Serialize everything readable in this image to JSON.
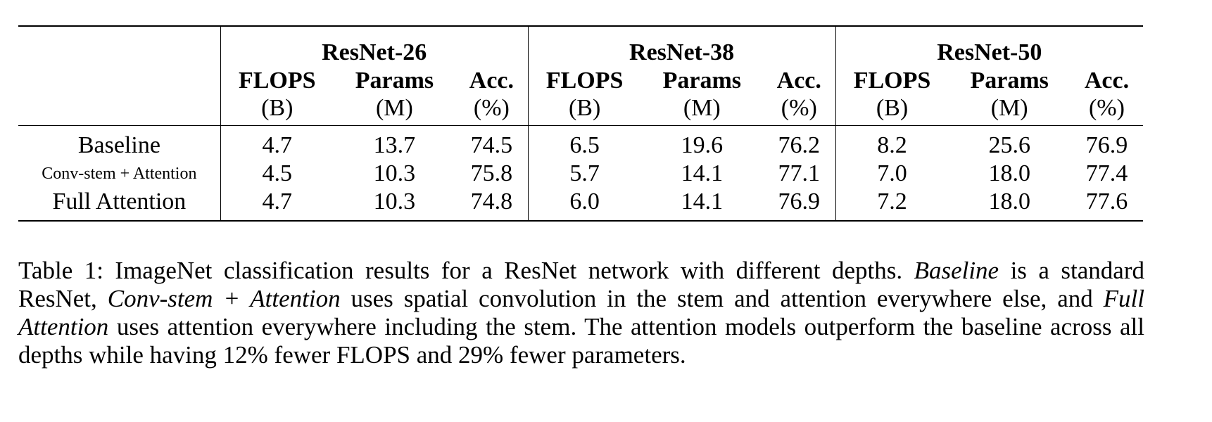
{
  "table": {
    "groups": [
      "ResNet-26",
      "ResNet-38",
      "ResNet-50"
    ],
    "metrics": [
      "FLOPS",
      "Params",
      "Acc."
    ],
    "units": [
      "(B)",
      "(M)",
      "(%)"
    ],
    "rows": [
      {
        "label": "Baseline",
        "values": [
          "4.7",
          "13.7",
          "74.5",
          "6.5",
          "19.6",
          "76.2",
          "8.2",
          "25.6",
          "76.9"
        ],
        "bold": [
          false,
          false,
          false,
          false,
          false,
          false,
          false,
          false,
          false
        ]
      },
      {
        "label": "Conv-stem + Attention",
        "values": [
          "4.5",
          "10.3",
          "75.8",
          "5.7",
          "14.1",
          "77.1",
          "7.0",
          "18.0",
          "77.4"
        ],
        "bold": [
          false,
          false,
          true,
          false,
          false,
          true,
          false,
          false,
          true
        ]
      },
      {
        "label": "Full Attention",
        "values": [
          "4.7",
          "10.3",
          "74.8",
          "6.0",
          "14.1",
          "76.9",
          "7.2",
          "18.0",
          "77.6"
        ],
        "bold": [
          false,
          false,
          false,
          false,
          false,
          false,
          false,
          false,
          true
        ]
      }
    ]
  },
  "caption": {
    "prefix": "Table 1: ImageNet classification results for a ResNet network with different depths. ",
    "baseline_term": "Baseline",
    "part1": " is a standard ResNet, ",
    "convstem_term": "Conv-stem + Attention",
    "part2": " uses spatial convolution in the stem and attention everywhere else, and ",
    "full_term": "Full Attention",
    "part3": " uses attention everywhere including the stem. The attention models outperform the baseline across all depths while having 12% fewer FLOPS and 29% fewer parameters."
  }
}
